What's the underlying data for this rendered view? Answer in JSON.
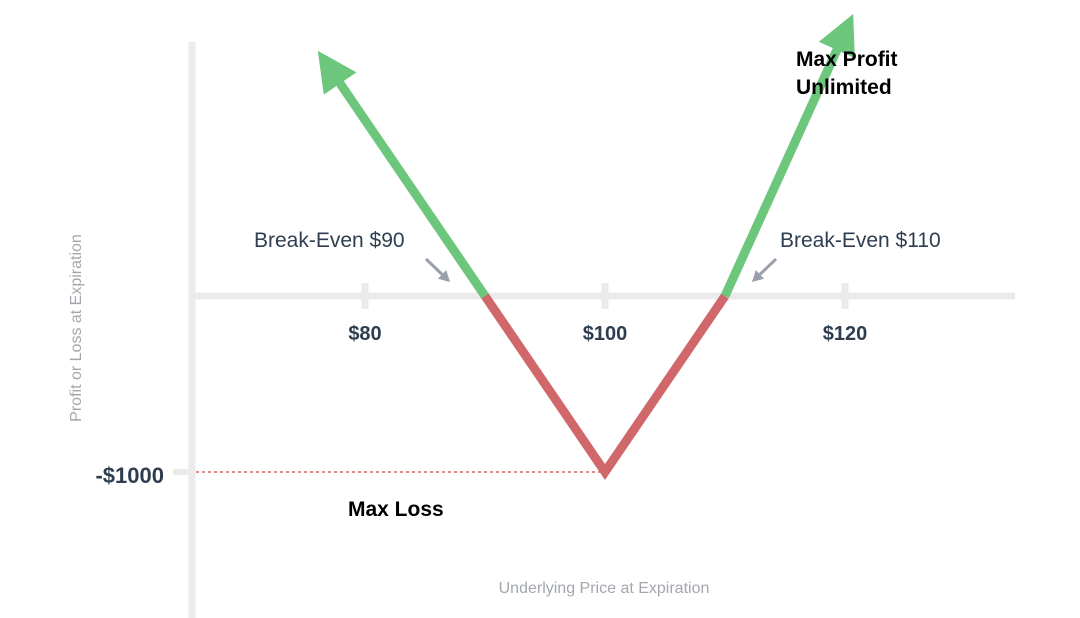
{
  "chart_data": {
    "type": "line",
    "xlabel": "Underlying Price at Expiration",
    "ylabel": "Profit or Loss at Expiration",
    "x_ticks": [
      {
        "value": 80,
        "label": "$80"
      },
      {
        "value": 100,
        "label": "$100"
      },
      {
        "value": 120,
        "label": "$120"
      }
    ],
    "y_ticks": [
      {
        "value": -1000,
        "label": "-$1000"
      }
    ],
    "xlim": [
      66,
      134
    ],
    "ylim": [
      -1400,
      1800
    ],
    "series": [
      {
        "x": [
          77,
          90,
          100,
          110,
          120
        ],
        "y": [
          1300,
          0,
          -1000,
          0,
          1500
        ],
        "segments": [
          {
            "from_x": 77,
            "to_x": 90,
            "zone": "profit"
          },
          {
            "from_x": 90,
            "to_x": 110,
            "zone": "loss"
          },
          {
            "from_x": 110,
            "to_x": 120,
            "zone": "profit"
          }
        ]
      }
    ],
    "annotations": {
      "break_even_left": {
        "text": "Break-Even $90",
        "x": 90
      },
      "break_even_right": {
        "text": "Break-Even $110",
        "x": 110
      },
      "max_profit": {
        "lines": [
          "Max Profit",
          "Unlimited"
        ]
      },
      "max_loss": {
        "text": "Max Loss",
        "y": -1000
      }
    },
    "colors": {
      "profit": "#6cc67c",
      "loss": "#d0676a",
      "axis": "#ebebeb",
      "arrow": "#9aa0ab",
      "text": "#2e3e50",
      "axis_title": "#a3a7ad",
      "dotted": "#d0676a"
    },
    "grid": false,
    "legend": "none"
  }
}
